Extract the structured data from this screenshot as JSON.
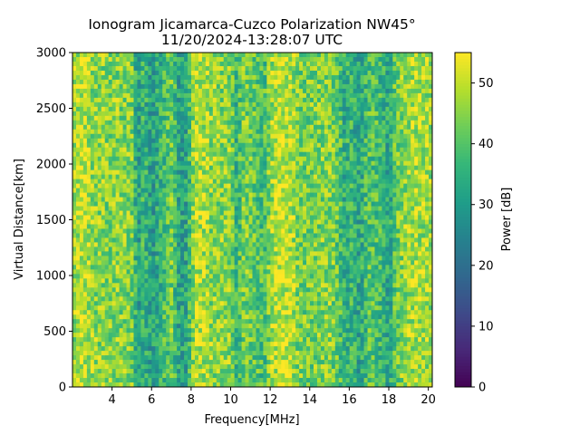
{
  "chart_data": {
    "type": "heatmap",
    "title_line1": "Ionogram Jicamarca-Cuzco Polarization NW45°",
    "title_line2": "11/20/2024-13:28:07 UTC",
    "xlabel": "Frequency[MHz]",
    "ylabel": "Virtual Distance[km]",
    "colorbar_label": "Power [dB]",
    "colormap": "viridis",
    "xlim": [
      2.0,
      20.2
    ],
    "ylim": [
      0,
      3000
    ],
    "clim": [
      0,
      55
    ],
    "x_ticks": [
      4,
      6,
      8,
      10,
      12,
      14,
      16,
      18,
      20
    ],
    "y_ticks": [
      0,
      500,
      1000,
      1500,
      2000,
      2500,
      3000
    ],
    "colorbar_ticks": [
      0,
      10,
      20,
      30,
      40,
      50
    ],
    "grid": false,
    "legend": "none",
    "column_power_profile": {
      "frequency_mhz": [
        2.0,
        2.5,
        3.0,
        3.5,
        4.0,
        4.5,
        5.0,
        5.3,
        5.6,
        6.0,
        6.5,
        7.0,
        7.4,
        7.8,
        8.2,
        8.6,
        9.0,
        9.5,
        10.0,
        10.3,
        10.7,
        11.2,
        11.7,
        12.0,
        12.5,
        13.0,
        13.5,
        14.0,
        14.5,
        15.0,
        15.5,
        15.8,
        16.0,
        16.5,
        17.0,
        17.5,
        18.0,
        18.3,
        18.7,
        19.0,
        19.5,
        20.2
      ],
      "mean_power_db": [
        46,
        50,
        46,
        45,
        45,
        45,
        44,
        30,
        37,
        30,
        36,
        43,
        31,
        32,
        49,
        48,
        46,
        45,
        45,
        35,
        44,
        41,
        38,
        46,
        51,
        49,
        43,
        43,
        44,
        45,
        40,
        33,
        37,
        32,
        40,
        38,
        32,
        41,
        45,
        47,
        48,
        46
      ]
    }
  }
}
